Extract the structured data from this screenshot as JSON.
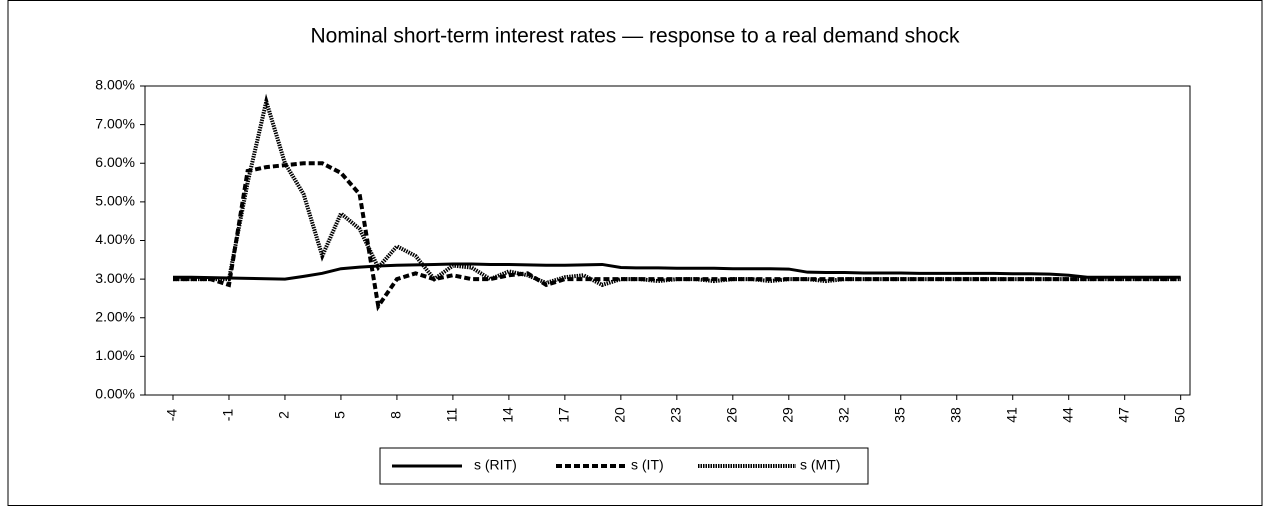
{
  "chart_data": {
    "type": "line",
    "title": "Nominal short-term interest rates — response to a real demand shock",
    "x": [
      -4,
      -3,
      -2,
      -1,
      0,
      1,
      2,
      3,
      4,
      5,
      6,
      7,
      8,
      9,
      10,
      11,
      12,
      13,
      14,
      15,
      16,
      17,
      18,
      19,
      20,
      21,
      22,
      23,
      24,
      25,
      26,
      27,
      28,
      29,
      30,
      31,
      32,
      33,
      34,
      35,
      36,
      37,
      38,
      39,
      40,
      41,
      42,
      43,
      44,
      45,
      46,
      47,
      48,
      49,
      50
    ],
    "xlim": [
      -5.5,
      50.5
    ],
    "xticks": [
      -4,
      -1,
      2,
      5,
      8,
      11,
      14,
      17,
      20,
      23,
      26,
      29,
      32,
      35,
      38,
      41,
      44,
      47,
      50
    ],
    "ylim": [
      0,
      8
    ],
    "yticks": [
      {
        "value": 0,
        "label": "0.00%"
      },
      {
        "value": 1,
        "label": "1.00%"
      },
      {
        "value": 2,
        "label": "2.00%"
      },
      {
        "value": 3,
        "label": "3.00%"
      },
      {
        "value": 4,
        "label": "4.00%"
      },
      {
        "value": 5,
        "label": "5.00%"
      },
      {
        "value": 6,
        "label": "6.00%"
      },
      {
        "value": 7,
        "label": "7.00%"
      },
      {
        "value": 8,
        "label": "8.00%"
      }
    ],
    "series": [
      {
        "name": "s (RIT)",
        "color": "#000000",
        "dash": "solid",
        "values": [
          3.05,
          3.05,
          3.04,
          3.03,
          3.02,
          3.01,
          3.0,
          3.07,
          3.15,
          3.27,
          3.31,
          3.34,
          3.36,
          3.37,
          3.38,
          3.39,
          3.39,
          3.38,
          3.38,
          3.37,
          3.36,
          3.36,
          3.37,
          3.38,
          3.3,
          3.29,
          3.29,
          3.28,
          3.28,
          3.28,
          3.27,
          3.27,
          3.27,
          3.26,
          3.18,
          3.17,
          3.17,
          3.16,
          3.16,
          3.16,
          3.15,
          3.15,
          3.15,
          3.15,
          3.15,
          3.14,
          3.14,
          3.13,
          3.1,
          3.05,
          3.05,
          3.05,
          3.05,
          3.05,
          3.05
        ]
      },
      {
        "name": "s (IT)",
        "color": "#000000",
        "dash": "dashed",
        "values": [
          3.0,
          3.0,
          3.0,
          2.85,
          5.8,
          5.9,
          5.95,
          6.0,
          6.0,
          5.75,
          5.2,
          2.3,
          3.0,
          3.15,
          3.0,
          3.1,
          3.0,
          3.0,
          3.1,
          3.15,
          2.85,
          3.0,
          3.0,
          3.0,
          3.0,
          3.0,
          3.0,
          3.0,
          3.0,
          3.0,
          3.0,
          3.0,
          3.0,
          3.0,
          3.0,
          3.0,
          3.0,
          3.0,
          3.0,
          3.0,
          3.0,
          3.0,
          3.0,
          3.0,
          3.0,
          3.0,
          3.0,
          3.0,
          3.0,
          3.0,
          3.0,
          3.0,
          3.0,
          3.0,
          3.0
        ]
      },
      {
        "name": "s (MT)",
        "color": "#000000",
        "dash": "dotted",
        "values": [
          3.0,
          3.0,
          3.0,
          3.0,
          5.5,
          7.6,
          6.0,
          5.2,
          3.6,
          4.7,
          4.3,
          3.3,
          3.85,
          3.6,
          3.0,
          3.35,
          3.3,
          3.0,
          3.2,
          3.1,
          2.9,
          3.05,
          3.1,
          2.85,
          3.0,
          3.0,
          2.95,
          3.0,
          3.0,
          2.95,
          3.0,
          3.0,
          2.95,
          3.0,
          3.0,
          2.95,
          3.0,
          3.0,
          3.0,
          3.0,
          3.0,
          3.0,
          3.0,
          3.0,
          3.0,
          3.0,
          3.0,
          3.0,
          3.0,
          3.0,
          3.0,
          3.0,
          3.0,
          3.0,
          3.0
        ]
      }
    ]
  }
}
